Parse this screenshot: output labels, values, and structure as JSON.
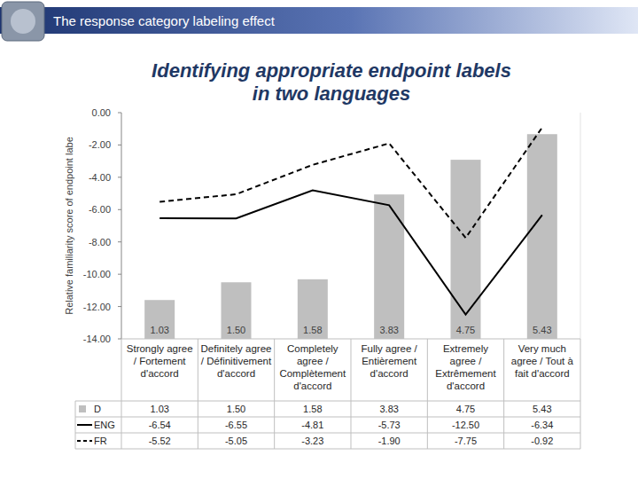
{
  "header": {
    "title": "The response category labeling effect"
  },
  "chart_data": {
    "type": "bar",
    "title": "Identifying appropriate endpoint labels in two languages",
    "y_label": "Relative familiarity score of endpoint labe",
    "categories": [
      "Strongly agree / Fortement d'accord",
      "Definitely agree / Définitivement d'accord",
      "Completely agree / Complètement d'accord",
      "Fully agree / Entièrement d'accord",
      "Extremely agree / Extrêmement d'accord",
      "Very much agree / Tout à fait d'accord"
    ],
    "series": [
      {
        "name": "D",
        "type": "bar",
        "color": "#bfbfbf",
        "axis": "y2",
        "data_labels": true,
        "values": [
          1.03,
          1.5,
          1.58,
          3.83,
          4.75,
          5.43
        ],
        "value_labels": [
          "1.03",
          "1.50",
          "1.58",
          "3.83",
          "4.75",
          "5.43"
        ]
      },
      {
        "name": "ENG",
        "type": "line",
        "color": "#000000",
        "line_style": "solid",
        "values": [
          -6.54,
          -6.55,
          -4.81,
          -5.73,
          -12.5,
          -6.34
        ],
        "value_labels": [
          "-6.54",
          "-6.55",
          "-4.81",
          "-5.73",
          "-12.50",
          "-6.34"
        ]
      },
      {
        "name": "FR",
        "type": "line",
        "color": "#000000",
        "line_style": "dashed",
        "values": [
          -5.52,
          -5.05,
          -3.23,
          -1.9,
          -7.75,
          -0.92
        ],
        "value_labels": [
          "-5.52",
          "-5.05",
          "-3.23",
          "-1.90",
          "-7.75",
          "-0.92"
        ]
      }
    ],
    "ylim": [
      -14,
      0
    ],
    "yticks": [
      {
        "value": 0,
        "label": "0.00"
      },
      {
        "value": -2,
        "label": "-2.00"
      },
      {
        "value": -4,
        "label": "-4.00"
      },
      {
        "value": -6,
        "label": "-6.00"
      },
      {
        "value": -8,
        "label": "-8.00"
      },
      {
        "value": -10,
        "label": "-10.00"
      },
      {
        "value": -12,
        "label": "-12.00"
      },
      {
        "value": -14,
        "label": "-14.00"
      }
    ],
    "y2lim": [
      0,
      6
    ],
    "grid": false,
    "legend": "bottom"
  }
}
